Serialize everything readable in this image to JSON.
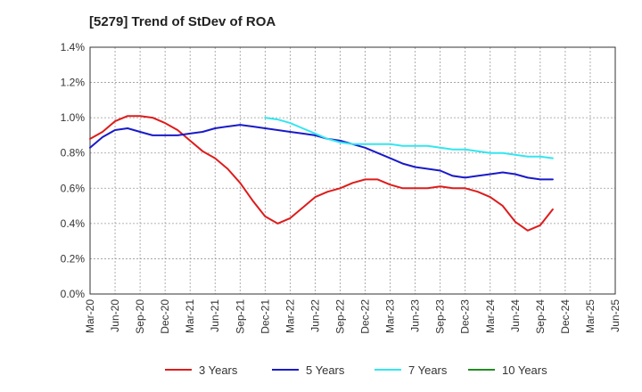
{
  "chart_data": {
    "type": "line",
    "title": "[5279]  Trend of StDev of ROA",
    "xlabel": "",
    "ylabel": "",
    "ylim": [
      0,
      1.4
    ],
    "y_ticks": [
      0,
      0.2,
      0.4,
      0.6,
      0.8,
      1.0,
      1.2,
      1.4
    ],
    "y_tick_labels": [
      "0.0%",
      "0.2%",
      "0.4%",
      "0.6%",
      "0.8%",
      "1.0%",
      "1.2%",
      "1.4%"
    ],
    "x_tick_labels": [
      "Mar-20",
      "Jun-20",
      "Sep-20",
      "Dec-20",
      "Mar-21",
      "Jun-21",
      "Sep-21",
      "Dec-21",
      "Mar-22",
      "Jun-22",
      "Sep-22",
      "Dec-22",
      "Mar-23",
      "Jun-23",
      "Sep-23",
      "Dec-23",
      "Mar-24",
      "Jun-24",
      "Sep-24",
      "Dec-24",
      "Mar-25",
      "Jun-25"
    ],
    "grid": true,
    "legend_position": "bottom",
    "series": [
      {
        "name": "3 Years",
        "color": "#dd1c1c",
        "values": [
          0.88,
          0.92,
          0.98,
          1.01,
          1.01,
          1.0,
          0.97,
          0.93,
          0.87,
          0.81,
          0.77,
          0.71,
          0.63,
          0.53,
          0.44,
          0.4,
          0.43,
          0.49,
          0.55,
          0.58,
          0.6,
          0.63,
          0.65,
          0.65,
          0.62,
          0.6,
          0.6,
          0.6,
          0.61,
          0.6,
          0.6,
          0.58,
          0.55,
          0.5,
          0.41,
          0.36,
          0.39,
          0.48
        ]
      },
      {
        "name": "5 Years",
        "color": "#1a1ac8",
        "values": [
          0.83,
          0.89,
          0.93,
          0.94,
          0.92,
          0.9,
          0.9,
          0.9,
          0.91,
          0.92,
          0.94,
          0.95,
          0.96,
          0.95,
          0.94,
          0.93,
          0.92,
          0.91,
          0.9,
          0.88,
          0.87,
          0.85,
          0.83,
          0.8,
          0.77,
          0.74,
          0.72,
          0.71,
          0.7,
          0.67,
          0.66,
          0.67,
          0.68,
          0.69,
          0.68,
          0.66,
          0.65,
          0.65
        ]
      },
      {
        "name": "7 Years",
        "color": "#33e6f0",
        "values": [
          null,
          null,
          null,
          null,
          null,
          null,
          null,
          null,
          null,
          null,
          null,
          null,
          null,
          null,
          1.0,
          0.99,
          0.97,
          0.94,
          0.91,
          0.88,
          0.86,
          0.85,
          0.85,
          0.85,
          0.85,
          0.84,
          0.84,
          0.84,
          0.83,
          0.82,
          0.82,
          0.81,
          0.8,
          0.8,
          0.79,
          0.78,
          0.78,
          0.77
        ]
      },
      {
        "name": "10 Years",
        "color": "#228b22",
        "values": []
      }
    ]
  }
}
